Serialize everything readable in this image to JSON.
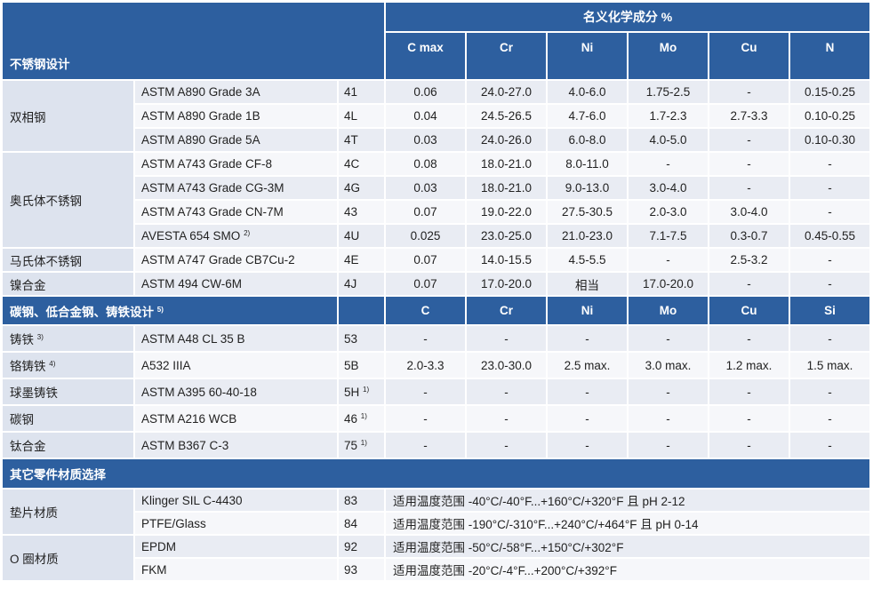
{
  "header": {
    "composition_title": "名义化学成分 %",
    "stainless_title": "不锈钢设计",
    "stainless_cols": [
      "C max",
      "Cr",
      "Ni",
      "Mo",
      "Cu",
      "N"
    ]
  },
  "stainless": [
    {
      "category": "双相钢",
      "rows": [
        {
          "grade": "ASTM A890 Grade 3A",
          "sup": "",
          "code": "41",
          "values": [
            "0.06",
            "24.0-27.0",
            "4.0-6.0",
            "1.75-2.5",
            "-",
            "0.15-0.25"
          ]
        },
        {
          "grade": "ASTM A890 Grade 1B",
          "sup": "",
          "code": "4L",
          "values": [
            "0.04",
            "24.5-26.5",
            "4.7-6.0",
            "1.7-2.3",
            "2.7-3.3",
            "0.10-0.25"
          ]
        },
        {
          "grade": "ASTM A890 Grade 5A",
          "sup": "",
          "code": "4T",
          "values": [
            "0.03",
            "24.0-26.0",
            "6.0-8.0",
            "4.0-5.0",
            "-",
            "0.10-0.30"
          ]
        }
      ]
    },
    {
      "category": "奥氏体不锈钢",
      "rows": [
        {
          "grade": "ASTM A743 Grade CF-8",
          "sup": "",
          "code": "4C",
          "values": [
            "0.08",
            "18.0-21.0",
            "8.0-11.0",
            "-",
            "-",
            "-"
          ]
        },
        {
          "grade": "ASTM A743 Grade CG-3M",
          "sup": "",
          "code": "4G",
          "values": [
            "0.03",
            "18.0-21.0",
            "9.0-13.0",
            "3.0-4.0",
            "-",
            "-"
          ]
        },
        {
          "grade": "ASTM A743 Grade CN-7M",
          "sup": "",
          "code": "43",
          "values": [
            "0.07",
            "19.0-22.0",
            "27.5-30.5",
            "2.0-3.0",
            "3.0-4.0",
            "-"
          ]
        },
        {
          "grade": "AVESTA 654 SMO",
          "sup": "2)",
          "code": "4U",
          "values": [
            "0.025",
            "23.0-25.0",
            "21.0-23.0",
            "7.1-7.5",
            "0.3-0.7",
            "0.45-0.55"
          ]
        }
      ]
    },
    {
      "category": "马氏体不锈钢",
      "rows": [
        {
          "grade": "ASTM A747 Grade CB7Cu-2",
          "sup": "",
          "code": "4E",
          "values": [
            "0.07",
            "14.0-15.5",
            "4.5-5.5",
            "-",
            "2.5-3.2",
            "-"
          ]
        }
      ]
    },
    {
      "category": "镍合金",
      "rows": [
        {
          "grade": "ASTM 494 CW-6M",
          "sup": "",
          "code": "4J",
          "values": [
            "0.07",
            "17.0-20.0",
            "相当",
            "17.0-20.0",
            "-",
            "-"
          ]
        }
      ]
    }
  ],
  "carbon_header": {
    "title": "碳钢、低合金钢、铸铁设计",
    "sup": "5)",
    "cols": [
      "C",
      "Cr",
      "Ni",
      "Mo",
      "Cu",
      "Si"
    ]
  },
  "carbon": [
    {
      "category": "铸铁",
      "cat_sup": "3)",
      "grade": "ASTM A48 CL 35 B",
      "code": "53",
      "code_sup": "",
      "values": [
        "-",
        "-",
        "-",
        "-",
        "-",
        "-"
      ]
    },
    {
      "category": "铬铸铁",
      "cat_sup": "4)",
      "grade": "A532 IIIA",
      "code": "5B",
      "code_sup": "",
      "values": [
        "2.0-3.3",
        "23.0-30.0",
        "2.5 max.",
        "3.0 max.",
        "1.2 max.",
        "1.5 max."
      ]
    },
    {
      "category": "球墨铸铁",
      "cat_sup": "",
      "grade": "ASTM A395 60-40-18",
      "code": "5H",
      "code_sup": "1)",
      "values": [
        "-",
        "-",
        "-",
        "-",
        "-",
        "-"
      ]
    },
    {
      "category": "碳钢",
      "cat_sup": "",
      "grade": "ASTM A216 WCB",
      "code": "46",
      "code_sup": "1)",
      "values": [
        "-",
        "-",
        "-",
        "-",
        "-",
        "-"
      ]
    },
    {
      "category": "钛合金",
      "cat_sup": "",
      "grade": "ASTM B367 C-3",
      "code": "75",
      "code_sup": "1)",
      "values": [
        "-",
        "-",
        "-",
        "-",
        "-",
        "-"
      ]
    }
  ],
  "other_header": {
    "title": "其它零件材质选择"
  },
  "other": [
    {
      "category": "垫片材质",
      "rows": [
        {
          "grade": "Klinger SIL C-4430",
          "code": "83",
          "note": "适用温度范围 -40°C/-40°F...+160°C/+320°F 且 pH 2-12"
        },
        {
          "grade": "PTFE/Glass",
          "code": "84",
          "note": "适用温度范围 -190°C/-310°F...+240°C/+464°F 且 pH 0-14"
        }
      ]
    },
    {
      "category": "O 圈材质",
      "rows": [
        {
          "grade": "EPDM",
          "code": "92",
          "note": "适用温度范围 -50°C/-58°F...+150°C/+302°F"
        },
        {
          "grade": "FKM",
          "code": "93",
          "note": "适用温度范围 -20°C/-4°F...+200°C/+392°F"
        }
      ]
    }
  ]
}
